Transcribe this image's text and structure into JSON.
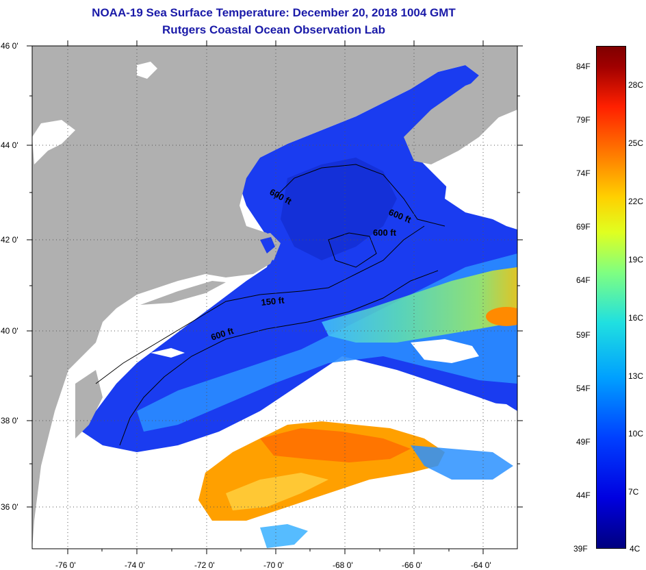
{
  "title": "NOAA-19 Sea Surface Temperature:  December 20, 2018 1004 GMT",
  "subtitle": "Rutgers Coastal Ocean Observation Lab",
  "lat_labels": [
    "46 0'",
    "44 0'",
    "42 0'",
    "40 0'",
    "38 0'",
    "36 0'"
  ],
  "lon_labels": [
    "-76 0'",
    "-74 0'",
    "-72 0'",
    "-70 0'",
    "-68 0'",
    "-66 0'",
    "-64 0'"
  ],
  "contour_labels": [
    "600 ft",
    "600 ft",
    "600 ft",
    "150 ft",
    "600 ft"
  ],
  "colorbar": {
    "fahrenheit": [
      "84F",
      "79F",
      "74F",
      "69F",
      "64F",
      "59F",
      "54F",
      "49F",
      "44F",
      "39F"
    ],
    "celsius": [
      "28C",
      "25C",
      "22C",
      "19C",
      "16C",
      "13C",
      "10C",
      "7C",
      "4C"
    ]
  },
  "colors": {
    "title": "#1a1aa8",
    "land": "#b0b0b0",
    "cloud": "#ffffff",
    "cold_water": "#0030e0",
    "warm_water": "#ff9000"
  }
}
